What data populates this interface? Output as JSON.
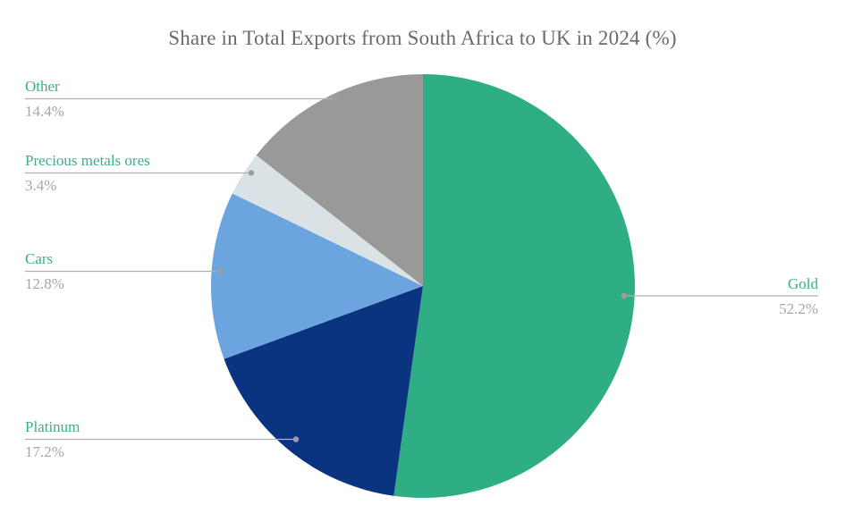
{
  "chart": {
    "title": "Share in Total Exports from South Africa to UK in 2024 (%)"
  },
  "chart_data": {
    "type": "pie",
    "title": "Share in Total Exports from South Africa to UK in 2024 (%)",
    "unit": "%",
    "start_angle_deg": 0,
    "direction": "clockwise",
    "legend_position": "outside-leader-lines",
    "segments": [
      {
        "label": "Gold",
        "value": 52.2,
        "display": "52.2%",
        "color": "#2fad84"
      },
      {
        "label": "Platinum",
        "value": 17.2,
        "display": "17.2%",
        "color": "#0a3380"
      },
      {
        "label": "Cars",
        "value": 12.8,
        "display": "12.8%",
        "color": "#6ba4de"
      },
      {
        "label": "Precious metals ores",
        "value": 3.4,
        "display": "3.4%",
        "color": "#d9e3e6"
      },
      {
        "label": "Other",
        "value": 14.4,
        "display": "14.4%",
        "color": "#999997"
      }
    ],
    "colors": {
      "title_text": "#6a6a6a",
      "category_label_text": "#3bae8c",
      "value_text": "#a6a6a6",
      "leader_line": "#b0b0b0",
      "leader_dot": "#9e9e9e"
    }
  }
}
